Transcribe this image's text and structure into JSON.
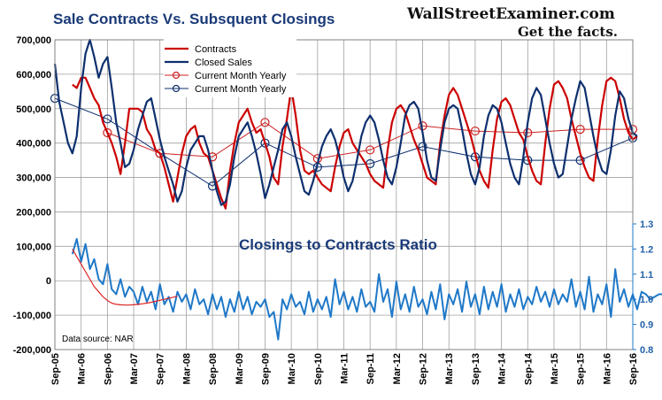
{
  "chart_data": {
    "type": "line",
    "title": "Sale Contracts Vs. Subsquent Closings",
    "subtitle": "Closings to Contracts Ratio",
    "brand_line1": "WallStreetExaminer.com",
    "brand_line2": "Get the facts.",
    "source": "Data source: NAR",
    "ylim_left": [
      -200000,
      700000
    ],
    "ylim_right": [
      0.8,
      1.3
    ],
    "left_ticks": [
      "700,000",
      "600,000",
      "500,000",
      "400,000",
      "300,000",
      "200,000",
      "100,000",
      "0",
      "-100,000",
      "-200,000"
    ],
    "right_ticks": [
      "1.3",
      "1.2",
      "1.1",
      "1.0",
      "0.9",
      "0.8"
    ],
    "x_ticks": [
      "Sep-05",
      "Mar-06",
      "Sep-06",
      "Mar-07",
      "Sep-07",
      "Mar-08",
      "Sep-08",
      "Mar-09",
      "Sep-09",
      "Mar-10",
      "Sep-10",
      "Mar-11",
      "Sep-11",
      "Mar-12",
      "Sep-12",
      "Mar-13",
      "Sep-13",
      "Mar-14",
      "Sep-14",
      "Mar-15",
      "Sep-15",
      "Mar-16",
      "Sep-16"
    ],
    "legend": [
      "Contracts",
      "Closed Sales",
      "Current Month Yearly",
      "Current Month Yearly"
    ],
    "colors": {
      "contracts": "#cc0000",
      "closed": "#0d2f6e",
      "ratio": "#1f78c8",
      "ratio_trend": "#dd2222",
      "yearly_contracts": "#cc2222",
      "yearly_closed": "#0d2f6e",
      "grid": "#a0a0a0"
    },
    "series": [
      {
        "name": "Contracts",
        "x_start": "Jan-06",
        "values": [
          570000,
          560000,
          590000,
          590000,
          560000,
          530000,
          510000,
          460000,
          430000,
          400000,
          360000,
          310000,
          400000,
          500000,
          500000,
          500000,
          490000,
          440000,
          420000,
          380000,
          370000,
          330000,
          280000,
          230000,
          300000,
          370000,
          420000,
          440000,
          450000,
          400000,
          370000,
          360000,
          320000,
          280000,
          240000,
          210000,
          320000,
          400000,
          460000,
          480000,
          500000,
          460000,
          430000,
          440000,
          400000,
          360000,
          300000,
          280000,
          390000,
          470000,
          560000,
          480000,
          380000,
          320000,
          310000,
          320000,
          300000,
          280000,
          270000,
          260000,
          330000,
          390000,
          430000,
          440000,
          400000,
          380000,
          360000,
          340000,
          310000,
          290000,
          280000,
          270000,
          380000,
          460000,
          500000,
          510000,
          490000,
          450000,
          410000,
          380000,
          340000,
          300000,
          290000,
          280000,
          400000,
          480000,
          540000,
          560000,
          540000,
          500000,
          460000,
          420000,
          370000,
          320000,
          290000,
          270000,
          380000,
          470000,
          520000,
          530000,
          510000,
          470000,
          430000,
          410000,
          360000,
          320000,
          290000,
          280000,
          400000,
          500000,
          570000,
          580000,
          560000,
          530000,
          470000,
          420000,
          370000,
          330000,
          300000,
          290000,
          410000,
          510000,
          580000,
          590000,
          580000,
          530000,
          470000,
          430000,
          410000,
          420000
        ]
      },
      {
        "name": "Closed Sales",
        "x_start": "Sep-05",
        "values": [
          630000,
          520000,
          460000,
          400000,
          370000,
          420000,
          560000,
          660000,
          700000,
          650000,
          590000,
          630000,
          650000,
          560000,
          460000,
          400000,
          330000,
          340000,
          380000,
          440000,
          480000,
          520000,
          530000,
          470000,
          410000,
          360000,
          320000,
          280000,
          230000,
          260000,
          330000,
          380000,
          400000,
          420000,
          420000,
          380000,
          320000,
          260000,
          220000,
          230000,
          280000,
          360000,
          420000,
          440000,
          460000,
          420000,
          370000,
          310000,
          240000,
          280000,
          330000,
          380000,
          440000,
          460000,
          420000,
          360000,
          310000,
          260000,
          250000,
          290000,
          340000,
          390000,
          420000,
          440000,
          410000,
          360000,
          300000,
          260000,
          290000,
          350000,
          420000,
          460000,
          480000,
          460000,
          410000,
          350000,
          300000,
          280000,
          330000,
          400000,
          480000,
          510000,
          520000,
          500000,
          430000,
          350000,
          300000,
          290000,
          380000,
          460000,
          500000,
          510000,
          500000,
          440000,
          370000,
          310000,
          280000,
          330000,
          420000,
          480000,
          510000,
          500000,
          460000,
          400000,
          340000,
          300000,
          280000,
          360000,
          460000,
          530000,
          560000,
          540000,
          470000,
          400000,
          340000,
          300000,
          310000,
          390000,
          470000,
          530000,
          580000,
          560000,
          490000,
          420000,
          360000,
          320000,
          310000,
          380000,
          480000,
          550000,
          530000,
          470000,
          430000,
          420000
        ]
      },
      {
        "name": "Closings to Contracts Ratio",
        "axis": "right",
        "x_start": "Jan-06",
        "values": [
          1.18,
          1.24,
          1.15,
          1.22,
          1.12,
          1.16,
          1.08,
          1.06,
          1.14,
          1.04,
          1.02,
          1.08,
          1.01,
          1.05,
          1.03,
          0.98,
          1.05,
          0.99,
          1.03,
          0.96,
          1.06,
          0.98,
          1.01,
          0.95,
          1.03,
          0.99,
          1.02,
          0.96,
          1.04,
          0.98,
          1.0,
          0.94,
          1.02,
          0.96,
          1.01,
          0.93,
          1.0,
          0.95,
          1.03,
          0.96,
          1.01,
          0.94,
          0.99,
          0.97,
          1.0,
          0.93,
          0.95,
          0.84,
          1.0,
          0.96,
          1.02,
          0.97,
          0.99,
          0.94,
          1.03,
          0.95,
          1.0,
          0.96,
          1.01,
          0.93,
          1.08,
          0.98,
          1.03,
          0.96,
          1.01,
          0.95,
          1.04,
          0.97,
          0.99,
          0.95,
          1.1,
          0.99,
          1.04,
          0.93,
          1.07,
          0.96,
          1.02,
          0.95,
          1.05,
          0.97,
          1.0,
          0.94,
          1.03,
          0.96,
          1.06,
          0.92,
          1.02,
          0.98,
          1.04,
          0.95,
          1.07,
          0.97,
          1.02,
          0.94,
          1.05,
          0.96,
          1.03,
          0.97,
          1.06,
          0.95,
          1.02,
          0.97,
          1.04,
          0.96,
          1.01,
          0.98,
          1.05,
          0.99,
          1.03,
          0.97,
          1.04,
          0.98,
          1.02,
          0.99,
          1.08,
          0.97,
          1.03,
          0.96,
          1.09,
          0.95,
          1.02,
          0.98,
          1.06,
          0.93,
          1.12,
          0.99,
          1.04,
          0.97,
          1.02,
          0.96,
          1.03,
          1.02,
          1.0,
          1.01,
          1.02,
          1.02
        ]
      }
    ],
    "yearly_contracts": {
      "name": "Current Month Yearly",
      "x": [
        "Sep-06",
        "Sep-07",
        "Sep-08",
        "Sep-09",
        "Sep-10",
        "Sep-11",
        "Sep-12",
        "Sep-13",
        "Sep-14",
        "Sep-15",
        "Sep-16"
      ],
      "values": [
        430000,
        370000,
        360000,
        460000,
        355000,
        380000,
        450000,
        435000,
        430000,
        440000,
        440000
      ]
    },
    "yearly_closed": {
      "name": "Current Month Yearly",
      "x": [
        "Sep-05",
        "Sep-06",
        "Sep-07",
        "Sep-08",
        "Sep-09",
        "Sep-10",
        "Sep-11",
        "Sep-12",
        "Sep-13",
        "Sep-14",
        "Sep-15",
        "Sep-16"
      ],
      "values": [
        530000,
        470000,
        370000,
        275000,
        400000,
        330000,
        340000,
        390000,
        360000,
        350000,
        350000,
        415000
      ]
    },
    "ratio_trend": {
      "x_start": "Jan-06",
      "values": [
        1.2,
        1.17,
        1.14,
        1.11,
        1.08,
        1.05,
        1.03,
        1.01,
        0.995,
        0.985,
        0.98,
        0.978,
        0.977,
        0.977,
        0.978,
        0.98,
        0.982,
        0.985,
        0.988,
        0.992,
        0.996,
        1.0,
        1.004,
        1.008,
        1.012
      ]
    }
  }
}
